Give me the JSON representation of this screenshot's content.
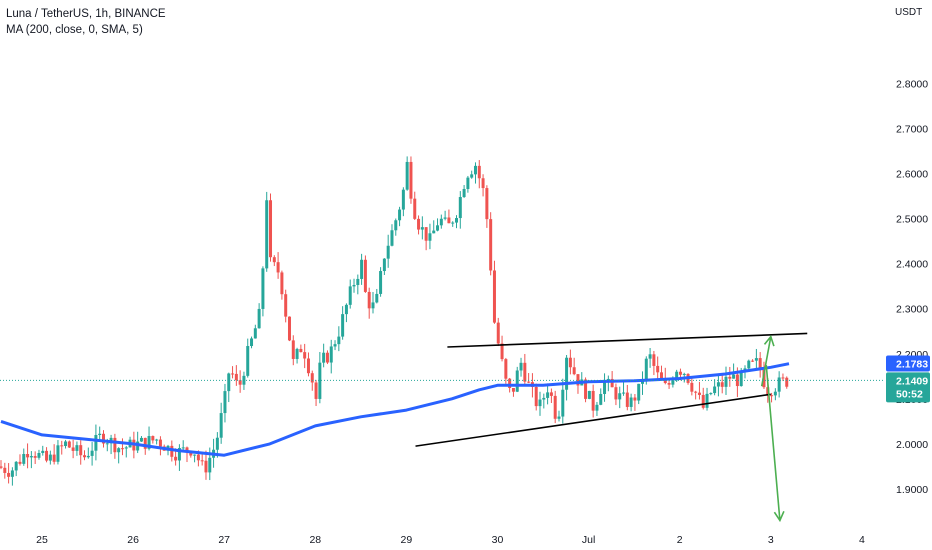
{
  "chart_header": {
    "symbol_line": "Luna / TetherUS, 1h, BINANCE",
    "indicator_line": "MA (200, close, 0, SMA, 5)",
    "quote_unit": "USDT"
  },
  "tags": {
    "ma_value": "2.1783",
    "last_price": "2.1409",
    "countdown": "50:52"
  },
  "colors": {
    "up": "#26a69a",
    "down": "#ef5350",
    "ma": "#2962ff",
    "trendline": "#000000",
    "arrow": "#4caf50",
    "last_price_tag": "#26a69a"
  },
  "chart_data": {
    "type": "candlestick",
    "title": "Luna / TetherUS, 1h, BINANCE",
    "ylim": [
      1.82,
      2.985
    ],
    "y_ticks": [
      "2.8000",
      "2.7000",
      "2.6000",
      "2.5000",
      "2.4000",
      "2.3000",
      "2.2000",
      "2.1000",
      "2.0000",
      "1.9000"
    ],
    "x_ticks": [
      "25",
      "26",
      "27",
      "28",
      "29",
      "30",
      "Jul",
      "2",
      "3",
      "4"
    ],
    "x_tick_days": [
      0,
      1,
      2,
      3,
      4,
      5,
      6,
      7,
      8,
      9
    ],
    "x_range_days": [
      -0.45,
      9.7
    ],
    "grid": false,
    "price_series": {
      "name": "LUNA/USDT",
      "days": [
        -0.45,
        -0.3,
        -0.1,
        0.1,
        0.3,
        0.5,
        0.7,
        0.9,
        1.1,
        1.3,
        1.5,
        1.7,
        1.82,
        1.95,
        2.0,
        2.05,
        2.1,
        2.2,
        2.3,
        2.45,
        2.5,
        2.55,
        2.65,
        2.8,
        2.9,
        3.0,
        3.05,
        3.1,
        3.2,
        3.3,
        3.45,
        3.55,
        3.6,
        3.7,
        3.8,
        3.9,
        4.0,
        4.05,
        4.1,
        4.15,
        4.2,
        4.3,
        4.4,
        4.5,
        4.6,
        4.7,
        4.8,
        4.9,
        4.95,
        5.0,
        5.07,
        5.15,
        5.2,
        5.25,
        5.3,
        5.4,
        5.5,
        5.6,
        5.7,
        5.8,
        5.9,
        6.0,
        6.1,
        6.2,
        6.3,
        6.4,
        6.5,
        6.6,
        6.7,
        6.8,
        6.9,
        7.0,
        7.1,
        7.2,
        7.3,
        7.4,
        7.5,
        7.6,
        7.7,
        7.8,
        7.9,
        8.0,
        8.1,
        8.2
      ],
      "values": [
        1.95,
        1.94,
        1.99,
        1.96,
        2.0,
        1.97,
        2.02,
        1.99,
        2.0,
        2.01,
        1.98,
        1.99,
        1.94,
        2.0,
        2.05,
        2.1,
        2.17,
        2.12,
        2.2,
        2.3,
        2.58,
        2.4,
        2.38,
        2.18,
        2.22,
        2.15,
        2.1,
        2.18,
        2.2,
        2.25,
        2.35,
        2.4,
        2.32,
        2.3,
        2.42,
        2.48,
        2.55,
        2.62,
        2.55,
        2.5,
        2.48,
        2.45,
        2.5,
        2.48,
        2.52,
        2.6,
        2.62,
        2.55,
        2.45,
        2.28,
        2.2,
        2.12,
        2.11,
        2.15,
        2.18,
        2.12,
        2.08,
        2.13,
        2.05,
        2.2,
        2.15,
        2.12,
        2.08,
        2.14,
        2.12,
        2.1,
        2.09,
        2.12,
        2.2,
        2.15,
        2.12,
        2.17,
        2.16,
        2.12,
        2.08,
        2.12,
        2.13,
        2.15,
        2.14,
        2.17,
        2.18,
        2.12,
        2.13,
        2.14
      ]
    },
    "series": [
      {
        "name": "MA (200, close, 0, SMA, 5)",
        "x": [
          -0.45,
          0.0,
          0.5,
          1.0,
          1.5,
          2.0,
          2.5,
          3.0,
          3.5,
          4.0,
          4.5,
          4.8,
          5.0,
          5.5,
          6.0,
          6.5,
          7.0,
          7.5,
          8.0,
          8.2
        ],
        "y": [
          2.05,
          2.02,
          2.01,
          2.0,
          1.985,
          1.975,
          2.0,
          2.04,
          2.06,
          2.075,
          2.1,
          2.12,
          2.13,
          2.13,
          2.138,
          2.14,
          2.145,
          2.155,
          2.17,
          2.178
        ]
      }
    ],
    "annotations": {
      "upper_trendline": {
        "x": [
          4.45,
          8.4
        ],
        "y": [
          2.215,
          2.245
        ]
      },
      "lower_trendline": {
        "x": [
          4.1,
          8.0
        ],
        "y": [
          1.995,
          2.11
        ]
      },
      "up_arrow": {
        "x": [
          7.9,
          8.0
        ],
        "y": [
          2.128,
          2.238
        ]
      },
      "down_arrow": {
        "x": [
          7.95,
          8.1
        ],
        "y": [
          2.175,
          1.83
        ]
      }
    }
  }
}
